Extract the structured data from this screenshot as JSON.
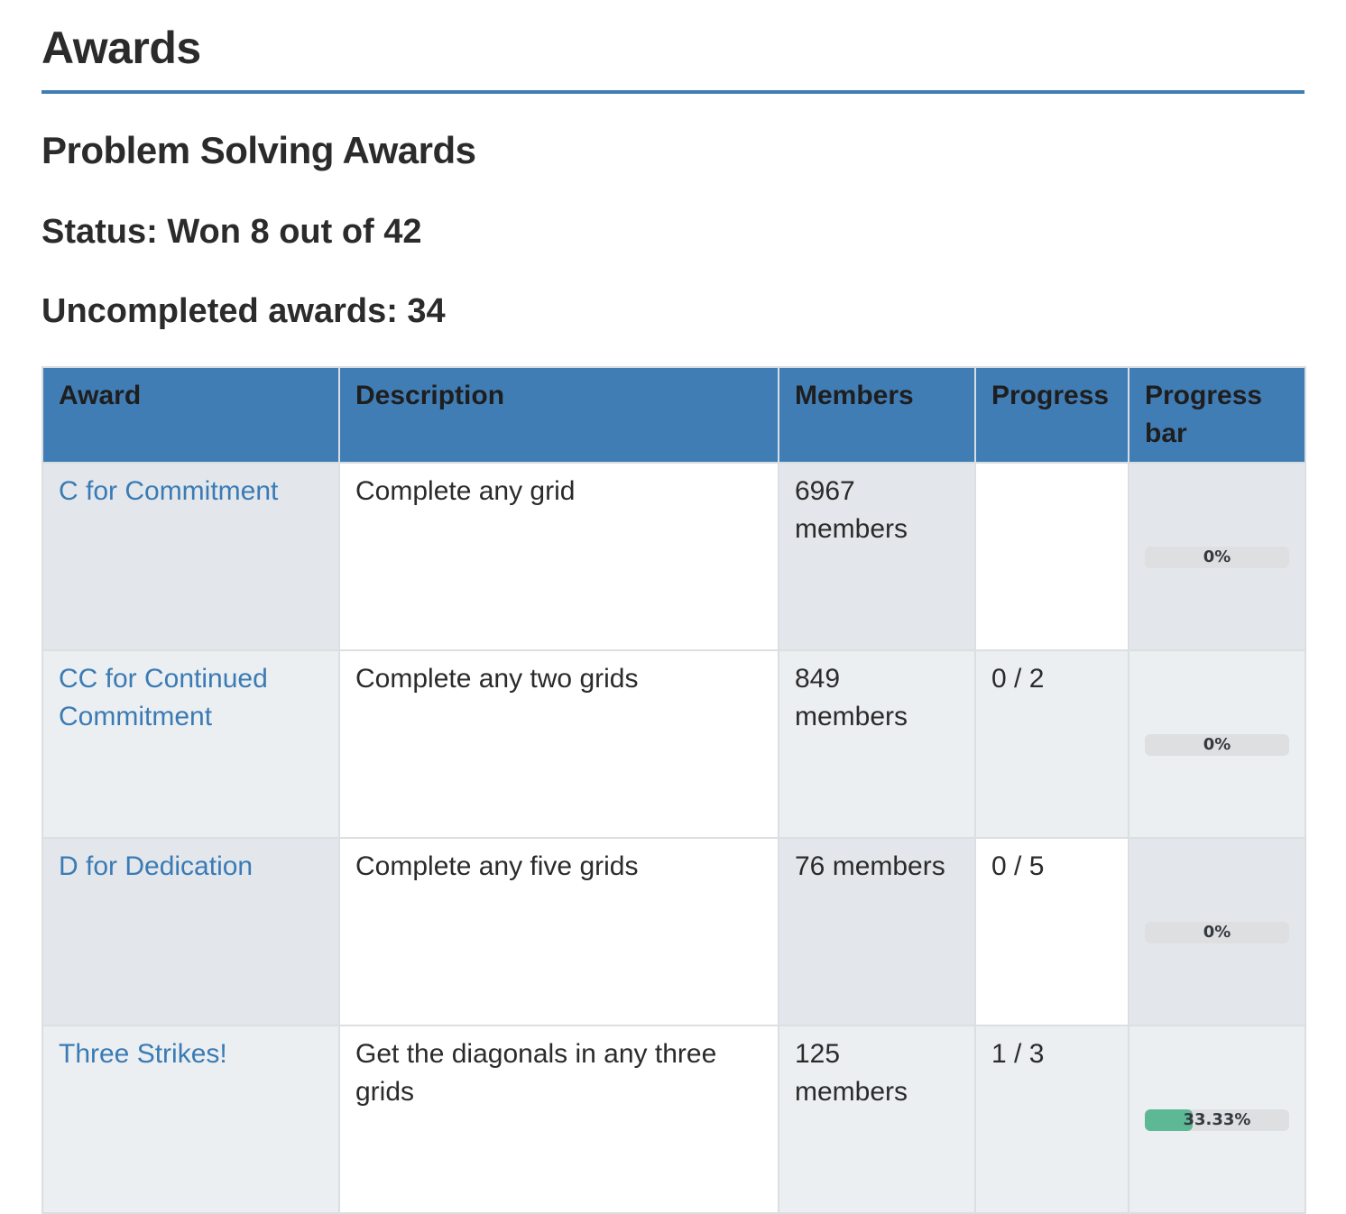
{
  "page": {
    "title": "Awards",
    "section_title": "Problem Solving Awards",
    "status": "Status: Won 8 out of 42",
    "uncompleted": "Uncompleted awards: 34"
  },
  "colors": {
    "accent": "#417db5",
    "link": "#3a7bb5",
    "progress_fill": "#5cb895",
    "progress_track": "#dedfe1"
  },
  "table": {
    "headers": [
      "Award",
      "Description",
      "Members",
      "Progress",
      "Progress bar"
    ],
    "rows": [
      {
        "award": "C for Commitment",
        "description": "Complete any grid",
        "members": "6967 members",
        "progress": "",
        "percent_label": "0%",
        "percent": 0
      },
      {
        "award": "CC for Continued Commitment",
        "description": "Complete any two grids",
        "members": "849 members",
        "progress": "0 / 2",
        "percent_label": "0%",
        "percent": 0
      },
      {
        "award": "D for Dedication",
        "description": "Complete any five grids",
        "members": "76 members",
        "progress": "0 / 5",
        "percent_label": "0%",
        "percent": 0
      },
      {
        "award": "Three Strikes!",
        "description": "Get the diagonals in any three grids",
        "members": "125 members",
        "progress": "1 / 3",
        "percent_label": "33.33%",
        "percent": 33.33
      }
    ]
  }
}
